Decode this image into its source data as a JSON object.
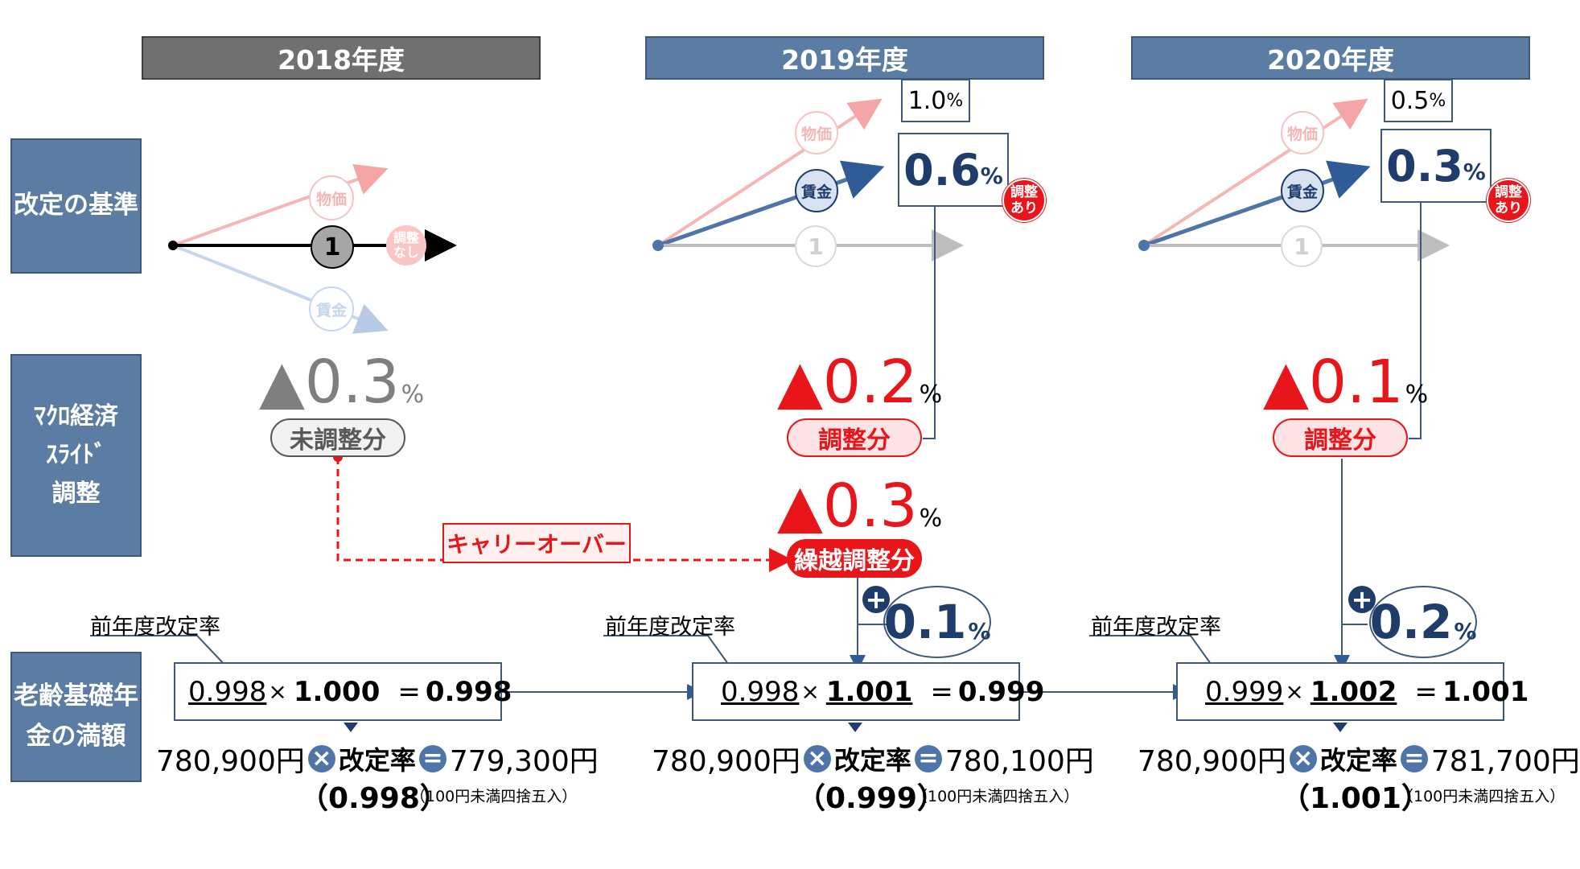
{
  "years": [
    {
      "label": "2018年度",
      "header_color": "#707070"
    },
    {
      "label": "2019年度",
      "header_color": "#5b7ca3"
    },
    {
      "label": "2020年度",
      "header_color": "#5b7ca3"
    }
  ],
  "row_labels": {
    "revision_basis": "改定の基準",
    "macro_line1": "ﾏｸﾛ経済",
    "macro_line2": "ｽﾗｲﾄﾞ",
    "macro_line3": "調整",
    "pension_line1": "老齢基礎年",
    "pension_line2": "金の満額"
  },
  "diagram_labels": {
    "price": "物価",
    "wage": "賃金",
    "one": "1",
    "no_adjust_1": "調整",
    "no_adjust_2": "なし",
    "adjust_1": "調整",
    "adjust_2": "あり"
  },
  "col2018": {
    "slide_value": "▲0.3",
    "unit": "%",
    "pill": "未調整分",
    "carryover": "キャリーオーバー",
    "prev_rate_label": "前年度改定率",
    "prev": "0.998",
    "times": "×",
    "factor": "1.000",
    "eq": "=",
    "result": "0.998",
    "base": "780,900円",
    "rate_label": "改定率",
    "amount": "779,300円",
    "rate_value": "（0.998）",
    "note": "（100円未満四捨五入）"
  },
  "col2019": {
    "price_pct": "1.0",
    "wage_pct": "0.6",
    "unit": "%",
    "slide_value": "▲0.2",
    "pill": "調整分",
    "carry_value": "▲0.3",
    "carry_pill": "繰越調整分",
    "plus": "+",
    "net": "0.1",
    "prev_rate_label": "前年度改定率",
    "prev": "0.998",
    "times": "×",
    "factor": "1.001",
    "eq": "=",
    "result": "0.999",
    "base": "780,900円",
    "rate_label": "改定率",
    "amount": "780,100円",
    "rate_value": "（0.999）",
    "note": "（100円未満四捨五入）"
  },
  "col2020": {
    "price_pct": "0.5",
    "wage_pct": "0.3",
    "unit": "%",
    "slide_value": "▲0.1",
    "pill": "調整分",
    "plus": "+",
    "net": "0.2",
    "prev_rate_label": "前年度改定率",
    "prev": "0.999",
    "times": "×",
    "factor": "1.002",
    "eq": "=",
    "result": "1.001",
    "base": "780,900円",
    "rate_label": "改定率",
    "amount": "781,700円",
    "rate_value": "（1.001）",
    "note": "（100円未満四捨五入）"
  },
  "ops": {
    "times_symbol": "×",
    "equals_symbol": "="
  },
  "colors": {
    "accent_blue": "#2f5c96",
    "dark_blue": "#1f3d6b",
    "red": "#e8151b",
    "gray": "#7f7f7f"
  }
}
